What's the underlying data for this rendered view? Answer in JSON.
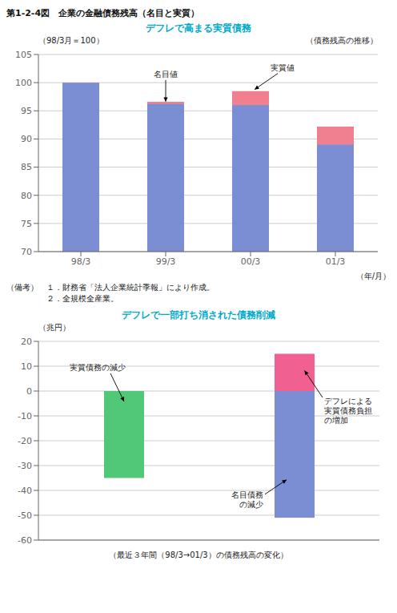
{
  "chart_data": [
    {
      "type": "bar",
      "title": "第1-2-4図　企業の金融債務残高（名目と実質）",
      "subtitle": "デフレで高まる実質債務",
      "ylabel": "（98/3月＝100）",
      "ylabel_right": "（債務残高の推移）",
      "xlabel": "（年/月）",
      "categories": [
        "98/3",
        "99/3",
        "00/3",
        "01/3"
      ],
      "series": [
        {
          "name": "名目値",
          "color": "#7b8ed4",
          "values": [
            100,
            96.2,
            96.0,
            89.0
          ]
        },
        {
          "name": "実質値",
          "color": "#f08090",
          "values": [
            100,
            96.6,
            98.5,
            92.2
          ]
        }
      ],
      "ylim": [
        70,
        105
      ],
      "yticks": [
        70,
        75,
        80,
        85,
        90,
        95,
        100,
        105
      ],
      "grid": true,
      "annotations": [
        {
          "text": "名目値",
          "x": "99/3",
          "y": 96.2
        },
        {
          "text": "実質値",
          "x": "00/3",
          "y": 98.5
        }
      ],
      "notes": [
        "（備考）　１．財務省「法人企業統計季報」により作成。",
        "　　　　　２．全規模全産業。"
      ]
    },
    {
      "type": "bar",
      "subtitle": "デフレで一部打ち消された債務削減",
      "ylabel": "（兆円）",
      "xlabel": "（最近３年間（98/3→01/3）の債務残高の変化）",
      "categories": [
        null,
        null
      ],
      "series": [
        {
          "name": "実質債務の減少",
          "color": "#50c878",
          "values": [
            -35,
            null
          ]
        },
        {
          "name": "名目債務\nの減少",
          "color": "#7b8ed4",
          "values": [
            null,
            -51
          ]
        },
        {
          "name": "デフレによる\n実質債務負担\nの増加",
          "color": "#f06090",
          "values": [
            null,
            15
          ]
        }
      ],
      "stacked": true,
      "ylim": [
        -60,
        20
      ],
      "yticks": [
        -60,
        -50,
        -40,
        -30,
        -20,
        -10,
        0,
        10,
        20
      ],
      "grid": true,
      "tick_labels": "y"
    }
  ]
}
